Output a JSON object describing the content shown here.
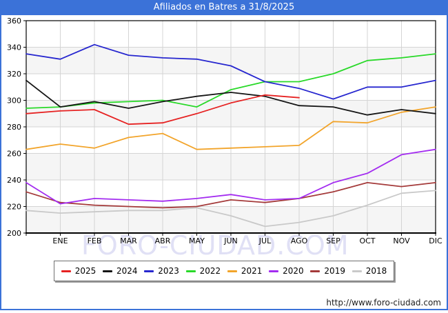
{
  "header": {
    "title": "Afiliados en Batres a 31/8/2025",
    "bg_color": "#3b72d8",
    "text_color": "#ffffff"
  },
  "watermark": {
    "text": "FORO-CIUDAD.COM"
  },
  "footer": {
    "url": "http://www.foro-ciudad.com"
  },
  "chart_data": {
    "type": "line",
    "title": "Afiliados en Batres a 31/8/2025",
    "x_labels": [
      "ENE",
      "FEB",
      "MAR",
      "ABR",
      "MAY",
      "JUN",
      "JUL",
      "AGO",
      "SEP",
      "OCT",
      "NOV",
      "DIC"
    ],
    "y_ticks": [
      360,
      340,
      320,
      300,
      280,
      260,
      240,
      220,
      200
    ],
    "ylim": [
      200,
      360
    ],
    "grid": true,
    "band_color": "#f5f5f5",
    "grid_color": "#d4d4d4",
    "legend_position": "bottom",
    "note_points": "13 x-positions per full year: value at 1-Jan (left edge) then end of each month ENE..DIC",
    "series": [
      {
        "name": "2025",
        "color": "#e62222",
        "values": [
          290,
          292,
          293,
          282,
          283,
          290,
          298,
          304,
          302
        ]
      },
      {
        "name": "2024",
        "color": "#151515",
        "values": [
          315,
          295,
          299,
          294,
          299,
          303,
          306,
          303,
          296,
          295,
          289,
          293,
          290
        ]
      },
      {
        "name": "2023",
        "color": "#2626cf",
        "values": [
          335,
          331,
          342,
          334,
          332,
          331,
          326,
          314,
          309,
          301,
          310,
          310,
          315
        ]
      },
      {
        "name": "2022",
        "color": "#28d928",
        "values": [
          294,
          295,
          298,
          299,
          300,
          295,
          308,
          314,
          314,
          320,
          330,
          332,
          335
        ]
      },
      {
        "name": "2021",
        "color": "#f2a42a",
        "values": [
          263,
          267,
          264,
          272,
          275,
          263,
          264,
          265,
          266,
          284,
          283,
          291,
          295
        ]
      },
      {
        "name": "2020",
        "color": "#a32cf0",
        "values": [
          238,
          222,
          226,
          225,
          224,
          226,
          229,
          225,
          226,
          238,
          245,
          259,
          263
        ]
      },
      {
        "name": "2019",
        "color": "#a43a3a",
        "values": [
          231,
          223,
          221,
          220,
          219,
          220,
          225,
          223,
          226,
          231,
          238,
          235,
          238
        ]
      },
      {
        "name": "2018",
        "color": "#c9c9c9",
        "values": [
          217,
          215,
          216,
          217,
          217,
          219,
          213,
          205,
          208,
          213,
          221,
          230,
          232
        ]
      }
    ]
  }
}
